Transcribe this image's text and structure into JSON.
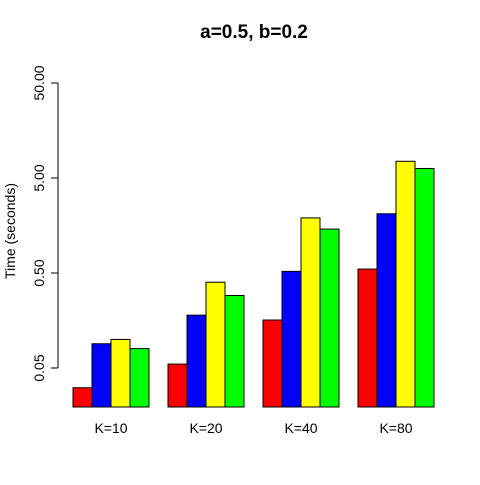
{
  "chart_data": {
    "type": "bar",
    "title": "a=0.5, b=0.2",
    "xlabel": "",
    "ylabel": "Time (seconds)",
    "yscale": "log",
    "ylim": [
      0.02,
      50
    ],
    "yticks": [
      0.05,
      0.5,
      5,
      50
    ],
    "ytick_labels": [
      "0.05",
      "0.50",
      "5.00",
      "50.00"
    ],
    "categories": [
      "K=10",
      "K=20",
      "K=40",
      "K=80"
    ],
    "series": [
      {
        "color": "#ff0000",
        "values": [
          0.031,
          0.055,
          0.16,
          0.55
        ]
      },
      {
        "color": "#0000ff",
        "values": [
          0.09,
          0.18,
          0.52,
          2.1
        ]
      },
      {
        "color": "#ffff00",
        "values": [
          0.1,
          0.4,
          1.9,
          7.5
        ]
      },
      {
        "color": "#00ff00",
        "values": [
          0.08,
          0.29,
          1.45,
          6.3
        ]
      }
    ],
    "grid": false,
    "legend": "none"
  }
}
